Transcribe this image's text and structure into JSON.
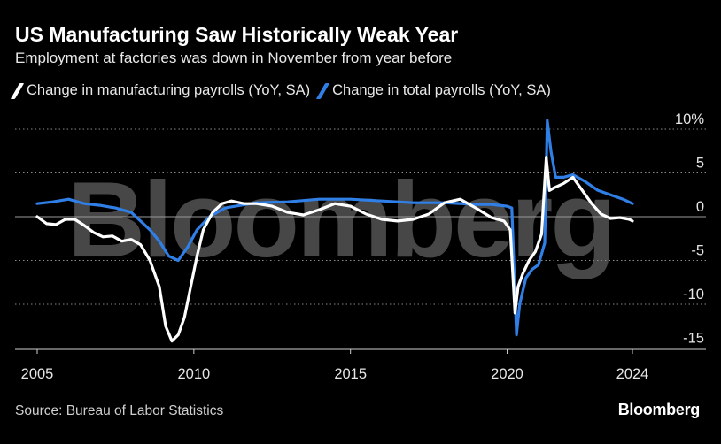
{
  "title": "US Manufacturing Saw Historically Weak Year",
  "subtitle": "Employment at factories was down in November from year before",
  "legend": {
    "manufacturing": "Change in manufacturing payrolls (YoY, SA)",
    "total": "Change in total payrolls (YoY, SA)"
  },
  "source": "Source: Bureau of Labor Statistics",
  "brand": "Bloomberg",
  "watermark": "Bloomberg",
  "colors": {
    "background": "#000000",
    "manufacturing": "#ffffff",
    "total": "#2f7fe6",
    "grid": "#8a8a8a"
  },
  "chart_data": {
    "type": "line",
    "title": "US Manufacturing Saw Historically Weak Year",
    "subtitle": "Employment at factories was down in November from year before",
    "xlabel": "",
    "ylabel": "",
    "xlim": [
      2005,
      2024
    ],
    "ylim": [
      -16,
      12
    ],
    "x_ticks": [
      2005,
      2010,
      2015,
      2020,
      2024
    ],
    "x_tick_labels": [
      "2005",
      "2010",
      "2015",
      "2020",
      "2024"
    ],
    "y_ticks": [
      10,
      5,
      0,
      -5,
      -10,
      -15
    ],
    "y_tick_labels": [
      "10%",
      "5",
      "0",
      "-5",
      "-10",
      "-15"
    ],
    "grid": "horizontal dotted",
    "legend_position": "top-left",
    "series": [
      {
        "name": "Change in manufacturing payrolls (YoY, SA)",
        "color": "#ffffff",
        "x": [
          2005.0,
          2005.3,
          2005.6,
          2005.9,
          2006.2,
          2006.5,
          2006.8,
          2007.1,
          2007.4,
          2007.7,
          2008.0,
          2008.3,
          2008.6,
          2008.9,
          2009.1,
          2009.3,
          2009.5,
          2009.7,
          2009.9,
          2010.1,
          2010.3,
          2010.6,
          2010.9,
          2011.2,
          2011.6,
          2012.0,
          2012.5,
          2013.0,
          2013.5,
          2014.0,
          2014.5,
          2015.0,
          2015.5,
          2016.0,
          2016.5,
          2017.0,
          2017.5,
          2018.0,
          2018.5,
          2019.0,
          2019.5,
          2019.9,
          2020.1,
          2020.25,
          2020.35,
          2020.5,
          2020.7,
          2020.9,
          2021.1,
          2021.25,
          2021.35,
          2021.5,
          2021.8,
          2022.1,
          2022.4,
          2022.7,
          2023.0,
          2023.3,
          2023.6,
          2023.9,
          2024.0
        ],
        "values": [
          0.0,
          -0.8,
          -0.9,
          -0.3,
          -0.3,
          -1.0,
          -1.8,
          -2.3,
          -2.2,
          -2.8,
          -2.6,
          -3.2,
          -5.0,
          -8.0,
          -12.5,
          -14.2,
          -13.5,
          -11.5,
          -8.0,
          -4.5,
          -1.5,
          0.5,
          1.5,
          1.8,
          1.5,
          1.5,
          1.2,
          0.5,
          0.2,
          0.8,
          1.5,
          1.2,
          0.3,
          -0.3,
          -0.5,
          -0.3,
          0.3,
          1.6,
          2.0,
          1.0,
          -0.1,
          -0.5,
          -1.5,
          -11.0,
          -8.0,
          -6.5,
          -5.0,
          -4.0,
          -2.0,
          6.8,
          3.0,
          3.3,
          3.8,
          4.5,
          3.0,
          1.5,
          0.3,
          -0.2,
          -0.1,
          -0.3,
          -0.5
        ]
      },
      {
        "name": "Change in total payrolls (YoY, SA)",
        "color": "#2f7fe6",
        "x": [
          2005.0,
          2005.5,
          2006.0,
          2006.5,
          2007.0,
          2007.5,
          2008.0,
          2008.3,
          2008.6,
          2008.9,
          2009.2,
          2009.5,
          2009.8,
          2010.1,
          2010.5,
          2011.0,
          2011.5,
          2012.0,
          2013.0,
          2014.0,
          2015.0,
          2016.0,
          2017.0,
          2018.0,
          2019.0,
          2019.5,
          2020.0,
          2020.15,
          2020.3,
          2020.4,
          2020.6,
          2020.8,
          2021.0,
          2021.2,
          2021.28,
          2021.4,
          2021.55,
          2021.8,
          2022.1,
          2022.5,
          2022.9,
          2023.3,
          2023.7,
          2024.0
        ],
        "values": [
          1.5,
          1.7,
          2.0,
          1.5,
          1.3,
          1.0,
          0.5,
          -0.5,
          -1.5,
          -2.8,
          -4.5,
          -5.0,
          -3.5,
          -1.5,
          0.0,
          1.0,
          1.3,
          1.6,
          1.7,
          2.0,
          2.0,
          1.8,
          1.6,
          1.6,
          1.4,
          1.4,
          1.2,
          1.0,
          -13.5,
          -10.0,
          -7.0,
          -6.0,
          -5.5,
          -3.0,
          11.0,
          7.5,
          4.5,
          4.5,
          4.8,
          4.0,
          3.0,
          2.5,
          2.0,
          1.5
        ]
      }
    ]
  }
}
